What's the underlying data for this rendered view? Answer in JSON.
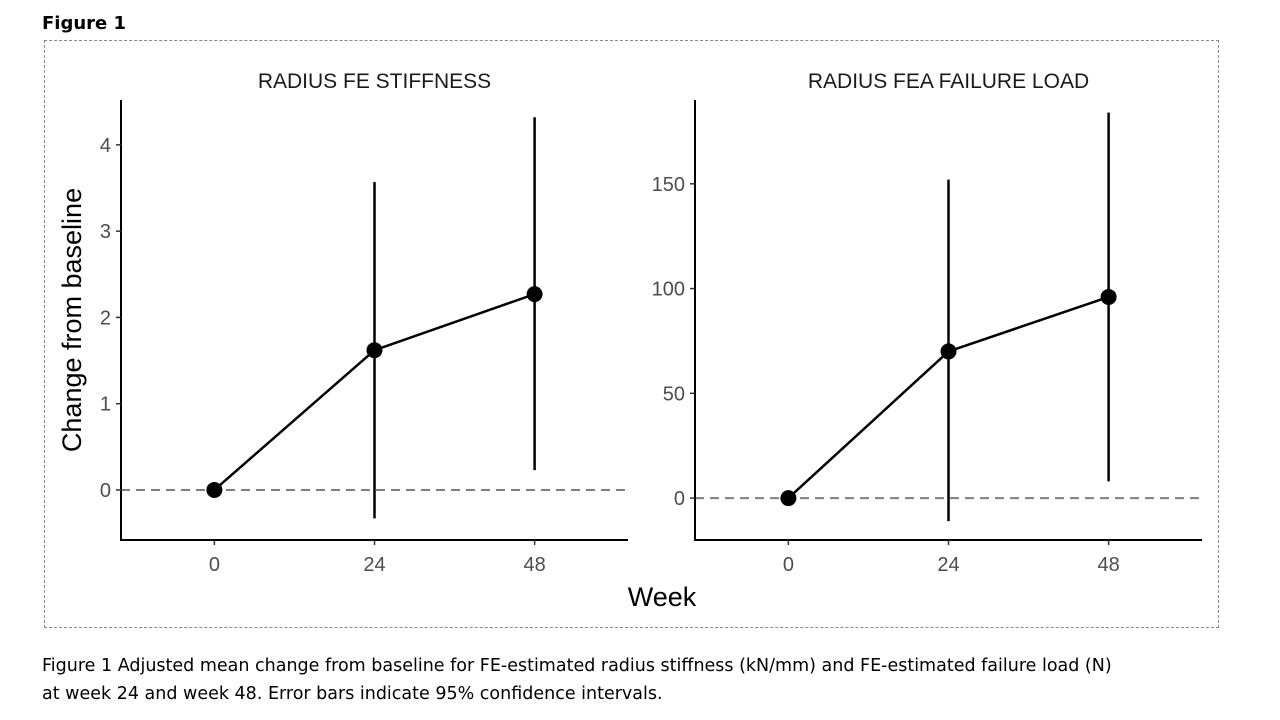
{
  "figure_label": "Figure 1",
  "shared_xlabel": "Week",
  "shared_ylabel": "Change from baseline",
  "caption_lines": [
    "Figure 1 Adjusted mean change from baseline for FE-estimated radius stiffness (kN/mm) and FE-estimated failure load (N)",
    "at week 24 and week 48. Error bars indicate 95% confidence intervals."
  ],
  "chart_data": [
    {
      "type": "line",
      "title": "RADIUS FE STIFFNESS",
      "xlabel": "Week",
      "ylabel": "Change from baseline",
      "x": [
        0,
        24,
        48
      ],
      "x_tick_labels": [
        "0",
        "24",
        "48"
      ],
      "y_ticks": [
        0,
        1,
        2,
        3,
        4
      ],
      "xlim": [
        -14,
        62
      ],
      "ylim": [
        -0.58,
        4.52
      ],
      "grid": false,
      "reference_line_y": 0,
      "series": [
        {
          "values": [
            0,
            1.62,
            2.27
          ],
          "ci_lower": [
            0,
            -0.33,
            0.23
          ],
          "ci_upper": [
            0,
            3.57,
            4.32
          ]
        }
      ]
    },
    {
      "type": "line",
      "title": "RADIUS FEA FAILURE LOAD",
      "xlabel": "Week",
      "ylabel": "",
      "x": [
        0,
        24,
        48
      ],
      "x_tick_labels": [
        "0",
        "24",
        "48"
      ],
      "y_ticks": [
        0,
        50,
        100,
        150
      ],
      "xlim": [
        -14,
        62
      ],
      "ylim": [
        -20,
        190
      ],
      "grid": false,
      "reference_line_y": 0,
      "series": [
        {
          "values": [
            0,
            70,
            96
          ],
          "ci_lower": [
            0,
            -11,
            8
          ],
          "ci_upper": [
            0,
            152,
            184
          ]
        }
      ]
    }
  ]
}
